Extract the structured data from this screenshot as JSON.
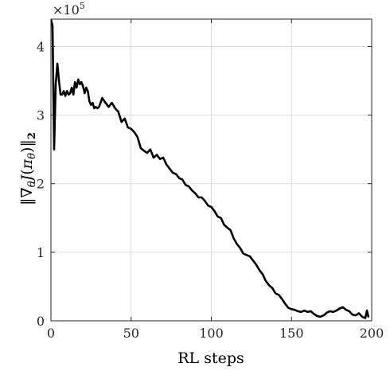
{
  "chart_data": {
    "type": "line",
    "xlabel": "RL steps",
    "ylabel": {
      "norm_open": "‖",
      "nabla": "∇",
      "theta_sub": "θ",
      "J": "J",
      "lp": "(",
      "pi": "π",
      "pi_sub": "θ",
      "rp": ")",
      "norm_close": "‖",
      "norm_sub": "2"
    },
    "exponent_label": {
      "times": "×10",
      "power": "5"
    },
    "xlim": [
      0,
      200
    ],
    "ylim": [
      0,
      440000
    ],
    "xticks": [
      0,
      50,
      100,
      150,
      200
    ],
    "yticks": [
      0,
      1,
      2,
      3,
      4
    ],
    "ytick_scale": 100000,
    "grid": true,
    "series": [
      {
        "color": "#000000",
        "x": [
          0,
          1,
          2,
          3,
          4,
          5,
          6,
          7,
          8,
          9,
          10,
          11,
          12,
          13,
          14,
          15,
          16,
          17,
          18,
          19,
          20,
          21,
          22,
          23,
          24,
          25,
          26,
          27,
          28,
          29,
          30,
          32,
          34,
          36,
          38,
          40,
          42,
          44,
          46,
          48,
          50,
          52,
          54,
          56,
          58,
          60,
          62,
          64,
          66,
          68,
          70,
          72,
          74,
          76,
          78,
          80,
          82,
          84,
          86,
          88,
          90,
          92,
          94,
          96,
          98,
          100,
          102,
          104,
          106,
          108,
          110,
          112,
          114,
          116,
          118,
          120,
          122,
          124,
          126,
          128,
          130,
          132,
          134,
          136,
          138,
          140,
          142,
          144,
          146,
          148,
          150,
          152,
          154,
          156,
          158,
          160,
          162,
          164,
          166,
          168,
          170,
          172,
          174,
          176,
          178,
          180,
          182,
          184,
          186,
          188,
          190,
          192,
          194,
          196,
          197,
          198
        ],
        "y": [
          440000,
          430000,
          250000,
          345000,
          375000,
          350000,
          330000,
          330000,
          335000,
          328000,
          335000,
          330000,
          332000,
          340000,
          330000,
          348000,
          340000,
          352000,
          345000,
          348000,
          342000,
          332000,
          340000,
          335000,
          320000,
          315000,
          318000,
          310000,
          312000,
          310000,
          312000,
          325000,
          318000,
          312000,
          318000,
          310000,
          305000,
          290000,
          295000,
          282000,
          280000,
          275000,
          268000,
          252000,
          248000,
          245000,
          250000,
          238000,
          242000,
          236000,
          238000,
          228000,
          222000,
          216000,
          214000,
          208000,
          206000,
          198000,
          196000,
          190000,
          186000,
          180000,
          180000,
          175000,
          168000,
          166000,
          160000,
          152000,
          150000,
          140000,
          136000,
          132000,
          120000,
          112000,
          106000,
          98000,
          96000,
          94000,
          88000,
          82000,
          74000,
          68000,
          58000,
          52000,
          48000,
          40000,
          38000,
          32000,
          25000,
          19000,
          17000,
          16000,
          14000,
          13000,
          15000,
          13000,
          14000,
          10000,
          7000,
          6000,
          8000,
          12000,
          14000,
          13000,
          15000,
          18000,
          20000,
          16000,
          14000,
          9000,
          8000,
          11000,
          6000,
          4000,
          15000,
          5000
        ]
      }
    ]
  }
}
